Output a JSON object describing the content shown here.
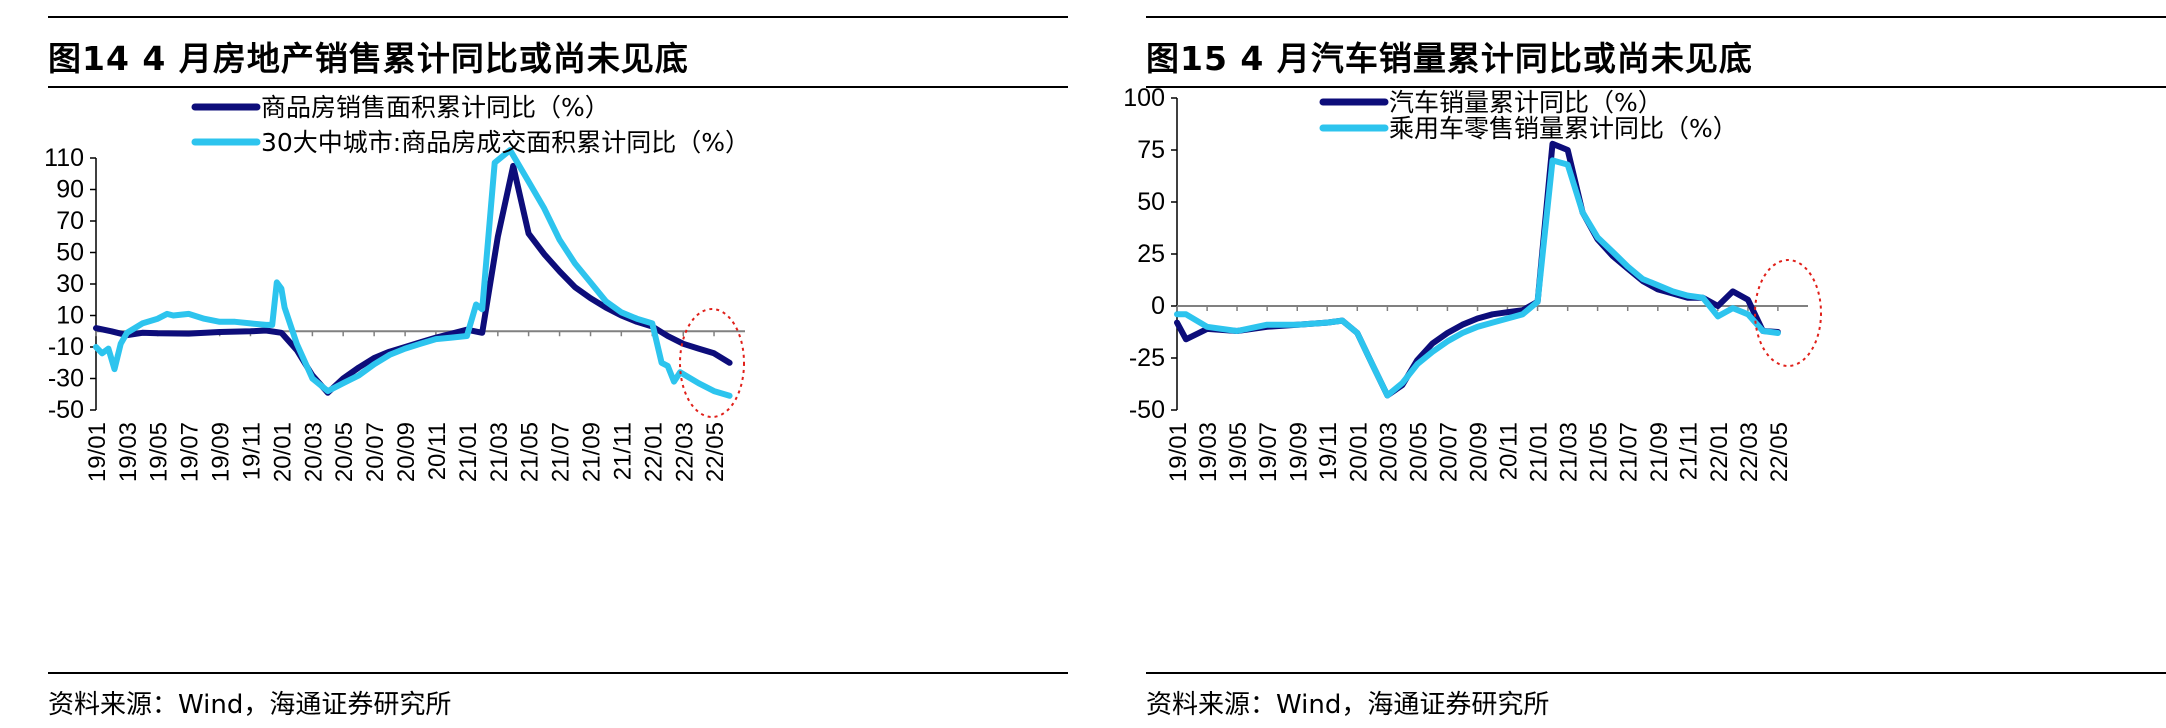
{
  "charts": [
    {
      "title": "图14 4 月房地产销售累计同比或尚未见底",
      "source": "资料来源：Wind，海通证券研究所",
      "chart_data": {
        "type": "line",
        "ylim": [
          -50,
          110
        ],
        "yticks": [
          -50,
          -30,
          -10,
          10,
          30,
          50,
          70,
          90,
          110
        ],
        "yticks_labels": [
          "-50",
          "-30",
          "-10",
          "10",
          "30",
          "50",
          "70",
          "90",
          "110"
        ],
        "xlim": [
          2019.0,
          2022.5
        ],
        "xtick_positions": [
          2019.0,
          2019.167,
          2019.333,
          2019.5,
          2019.667,
          2019.833,
          2020.0,
          2020.167,
          2020.333,
          2020.5,
          2020.667,
          2020.833,
          2021.0,
          2021.167,
          2021.333,
          2021.5,
          2021.667,
          2021.833,
          2022.0,
          2022.167,
          2022.333
        ],
        "xtick_labels": [
          "19/01",
          "19/03",
          "19/05",
          "19/07",
          "19/09",
          "19/11",
          "20/01",
          "20/03",
          "20/05",
          "20/07",
          "20/09",
          "20/11",
          "21/01",
          "21/03",
          "21/05",
          "21/07",
          "21/09",
          "21/11",
          "22/01",
          "22/03",
          "22/05"
        ],
        "series": [
          {
            "name": "商品房销售面积累计同比（%）",
            "color": "#0d0d7a",
            "points": [
              [
                2019.0,
                2
              ],
              [
                2019.083,
                0
              ],
              [
                2019.167,
                -2.5
              ],
              [
                2019.25,
                -1
              ],
              [
                2019.333,
                -1.3
              ],
              [
                2019.5,
                -1.5
              ],
              [
                2019.667,
                -0.5
              ],
              [
                2019.833,
                0
              ],
              [
                2019.917,
                0.5
              ],
              [
                2020.0,
                -1
              ],
              [
                2020.083,
                -12
              ],
              [
                2020.167,
                -28
              ],
              [
                2020.25,
                -39
              ],
              [
                2020.333,
                -30
              ],
              [
                2020.417,
                -23
              ],
              [
                2020.5,
                -17
              ],
              [
                2020.583,
                -13
              ],
              [
                2020.667,
                -10
              ],
              [
                2020.75,
                -7
              ],
              [
                2020.833,
                -4
              ],
              [
                2020.917,
                -1.5
              ],
              [
                2021.0,
                1
              ],
              [
                2021.083,
                -1
              ],
              [
                2021.167,
                60
              ],
              [
                2021.25,
                105
              ],
              [
                2021.333,
                62
              ],
              [
                2021.417,
                49
              ],
              [
                2021.5,
                38
              ],
              [
                2021.583,
                28
              ],
              [
                2021.667,
                21
              ],
              [
                2021.75,
                15
              ],
              [
                2021.833,
                10
              ],
              [
                2021.917,
                6
              ],
              [
                2022.0,
                3
              ],
              [
                2022.083,
                -3
              ],
              [
                2022.167,
                -8
              ],
              [
                2022.25,
                -11
              ],
              [
                2022.333,
                -14
              ],
              [
                2022.417,
                -20
              ]
            ]
          },
          {
            "name": "30大中城市:商品房成交面积累计同比（%）",
            "color": "#2dc4ee",
            "points": [
              [
                2019.0,
                -10
              ],
              [
                2019.033,
                -14
              ],
              [
                2019.067,
                -11
              ],
              [
                2019.1,
                -24
              ],
              [
                2019.133,
                -8
              ],
              [
                2019.167,
                -1
              ],
              [
                2019.25,
                5
              ],
              [
                2019.333,
                8
              ],
              [
                2019.383,
                11
              ],
              [
                2019.417,
                10
              ],
              [
                2019.5,
                11
              ],
              [
                2019.583,
                8
              ],
              [
                2019.667,
                6
              ],
              [
                2019.75,
                6
              ],
              [
                2019.833,
                5
              ],
              [
                2019.917,
                4
              ],
              [
                2019.95,
                4
              ],
              [
                2019.975,
                31
              ],
              [
                2020.0,
                27
              ],
              [
                2020.017,
                15
              ],
              [
                2020.083,
                -8
              ],
              [
                2020.167,
                -30
              ],
              [
                2020.25,
                -38
              ],
              [
                2020.333,
                -33
              ],
              [
                2020.417,
                -28
              ],
              [
                2020.5,
                -21
              ],
              [
                2020.583,
                -15
              ],
              [
                2020.667,
                -11
              ],
              [
                2020.75,
                -8
              ],
              [
                2020.833,
                -5
              ],
              [
                2020.917,
                -4
              ],
              [
                2021.0,
                -3
              ],
              [
                2021.05,
                17
              ],
              [
                2021.083,
                14
              ],
              [
                2021.15,
                107
              ],
              [
                2021.233,
                115
              ],
              [
                2021.333,
                95
              ],
              [
                2021.417,
                78
              ],
              [
                2021.5,
                58
              ],
              [
                2021.583,
                43
              ],
              [
                2021.667,
                31
              ],
              [
                2021.75,
                19
              ],
              [
                2021.833,
                12
              ],
              [
                2021.917,
                8
              ],
              [
                2022.0,
                5
              ],
              [
                2022.05,
                -20
              ],
              [
                2022.083,
                -22
              ],
              [
                2022.117,
                -32
              ],
              [
                2022.15,
                -26
              ],
              [
                2022.25,
                -33
              ],
              [
                2022.333,
                -38
              ],
              [
                2022.417,
                -41
              ]
            ]
          }
        ]
      }
    },
    {
      "title": "图15 4 月汽车销量累计同比或尚未见底",
      "source": "资料来源：Wind，海通证券研究所",
      "chart_data": {
        "type": "line",
        "ylim": [
          -50,
          100
        ],
        "yticks": [
          -50,
          -25,
          0,
          25,
          50,
          75,
          100
        ],
        "yticks_labels": [
          "-50",
          "-25",
          "0",
          "25",
          "50",
          "75",
          "100"
        ],
        "xlim": [
          2019.0,
          2022.5
        ],
        "xtick_positions": [
          2019.0,
          2019.167,
          2019.333,
          2019.5,
          2019.667,
          2019.833,
          2020.0,
          2020.167,
          2020.333,
          2020.5,
          2020.667,
          2020.833,
          2021.0,
          2021.167,
          2021.333,
          2021.5,
          2021.667,
          2021.833,
          2022.0,
          2022.167,
          2022.333
        ],
        "xtick_labels": [
          "19/01",
          "19/03",
          "19/05",
          "19/07",
          "19/09",
          "19/11",
          "20/01",
          "20/03",
          "20/05",
          "20/07",
          "20/09",
          "20/11",
          "21/01",
          "21/03",
          "21/05",
          "21/07",
          "21/09",
          "21/11",
          "22/01",
          "22/03",
          "22/05"
        ],
        "series": [
          {
            "name": "汽车销量累计同比（%）",
            "color": "#0d0d7a",
            "points": [
              [
                2019.0,
                -8
              ],
              [
                2019.05,
                -16
              ],
              [
                2019.167,
                -11
              ],
              [
                2019.333,
                -12
              ],
              [
                2019.5,
                -10
              ],
              [
                2019.667,
                -9
              ],
              [
                2019.833,
                -8
              ],
              [
                2019.917,
                -7
              ],
              [
                2020.0,
                -13
              ],
              [
                2020.083,
                -28
              ],
              [
                2020.167,
                -43
              ],
              [
                2020.25,
                -38
              ],
              [
                2020.333,
                -26
              ],
              [
                2020.417,
                -18
              ],
              [
                2020.5,
                -13
              ],
              [
                2020.583,
                -9
              ],
              [
                2020.667,
                -6
              ],
              [
                2020.75,
                -4
              ],
              [
                2020.833,
                -3
              ],
              [
                2020.917,
                -2
              ],
              [
                2021.0,
                2
              ],
              [
                2021.083,
                78
              ],
              [
                2021.167,
                75
              ],
              [
                2021.25,
                45
              ],
              [
                2021.333,
                32
              ],
              [
                2021.417,
                24
              ],
              [
                2021.5,
                18
              ],
              [
                2021.583,
                12
              ],
              [
                2021.667,
                8
              ],
              [
                2021.75,
                6
              ],
              [
                2021.833,
                4
              ],
              [
                2021.917,
                4
              ],
              [
                2022.0,
                0
              ],
              [
                2022.083,
                7
              ],
              [
                2022.167,
                3
              ],
              [
                2022.25,
                -12
              ],
              [
                2022.333,
                -12.5
              ]
            ]
          },
          {
            "name": "乘用车零售销量累计同比（%）",
            "color": "#2dc4ee",
            "points": [
              [
                2019.0,
                -4
              ],
              [
                2019.05,
                -4
              ],
              [
                2019.167,
                -10
              ],
              [
                2019.333,
                -12
              ],
              [
                2019.5,
                -9
              ],
              [
                2019.667,
                -9
              ],
              [
                2019.833,
                -8
              ],
              [
                2019.917,
                -7
              ],
              [
                2020.0,
                -13
              ],
              [
                2020.083,
                -28
              ],
              [
                2020.167,
                -43
              ],
              [
                2020.25,
                -37
              ],
              [
                2020.333,
                -28
              ],
              [
                2020.417,
                -22
              ],
              [
                2020.5,
                -17
              ],
              [
                2020.583,
                -13
              ],
              [
                2020.667,
                -10
              ],
              [
                2020.75,
                -8
              ],
              [
                2020.833,
                -6
              ],
              [
                2020.917,
                -4
              ],
              [
                2021.0,
                2
              ],
              [
                2021.083,
                70
              ],
              [
                2021.167,
                68
              ],
              [
                2021.25,
                45
              ],
              [
                2021.333,
                33
              ],
              [
                2021.417,
                26
              ],
              [
                2021.5,
                19
              ],
              [
                2021.583,
                13
              ],
              [
                2021.667,
                10
              ],
              [
                2021.75,
                7
              ],
              [
                2021.833,
                5
              ],
              [
                2021.917,
                4
              ],
              [
                2022.0,
                -5
              ],
              [
                2022.083,
                -1
              ],
              [
                2022.167,
                -4
              ],
              [
                2022.25,
                -12
              ],
              [
                2022.333,
                -13
              ]
            ]
          }
        ]
      }
    }
  ]
}
